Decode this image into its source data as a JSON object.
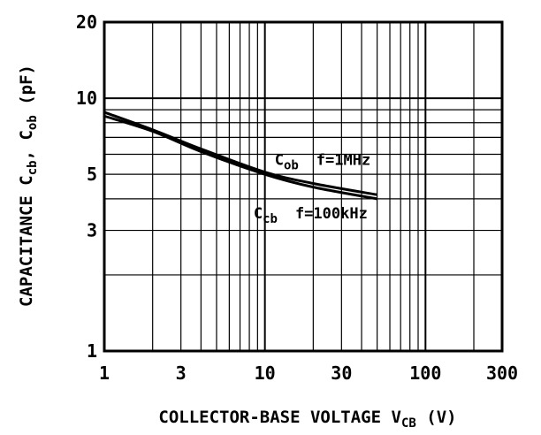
{
  "chart_data": {
    "type": "line",
    "title": "",
    "xlabel": {
      "main": "COLLECTOR-BASE VOLTAGE V",
      "sub": "CB",
      "unit": " (V)"
    },
    "ylabel": {
      "p1": "CAPACITANCE C",
      "s1": "cb",
      "p2": ", C",
      "s2": "ob",
      "p3": " (pF)"
    },
    "x_scale": "log",
    "y_scale": "log",
    "xlim": [
      1,
      300
    ],
    "ylim": [
      1,
      20
    ],
    "x_ticks": [
      {
        "value": 1,
        "label": "1"
      },
      {
        "value": 3,
        "label": "3"
      },
      {
        "value": 10,
        "label": "10"
      },
      {
        "value": 30,
        "label": "30"
      },
      {
        "value": 100,
        "label": "100"
      },
      {
        "value": 300,
        "label": "300"
      }
    ],
    "y_ticks": [
      {
        "value": 1,
        "label": "1"
      },
      {
        "value": 3,
        "label": "3"
      },
      {
        "value": 5,
        "label": "5"
      },
      {
        "value": 10,
        "label": "10"
      },
      {
        "value": 20,
        "label": "20"
      }
    ],
    "grid": true,
    "series": [
      {
        "name": "Cob",
        "condition": "f=1MHz",
        "x": [
          1,
          2,
          4,
          10,
          20,
          50
        ],
        "y": [
          8.8,
          7.5,
          6.3,
          5.1,
          4.6,
          4.15
        ]
      },
      {
        "name": "Ccb",
        "condition": "f=100kHz",
        "x": [
          1,
          2,
          4,
          10,
          20,
          50
        ],
        "y": [
          8.5,
          7.4,
          6.15,
          5.0,
          4.45,
          4.0
        ]
      }
    ],
    "annotations": [
      {
        "main": "C",
        "sub": "ob",
        "cond": "f=1MHz",
        "x": 11.5,
        "y": 5.45
      },
      {
        "main": "C",
        "sub": "cb",
        "cond": "f=100kHz",
        "x": 8.5,
        "y": 3.35
      }
    ]
  }
}
